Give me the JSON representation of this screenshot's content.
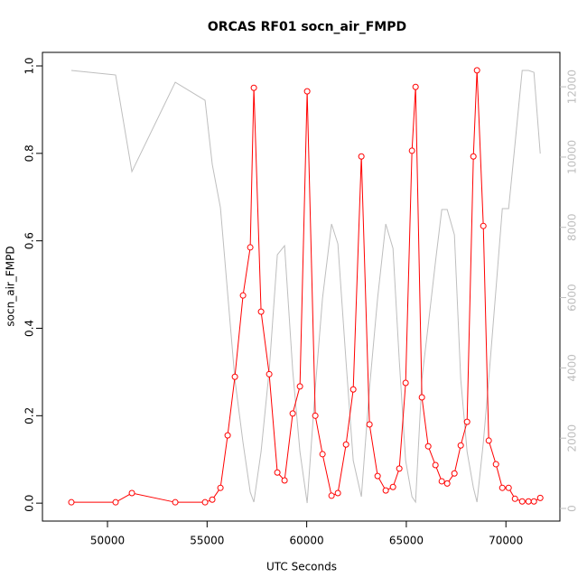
{
  "chart_data": {
    "type": "line",
    "title": "ORCAS RF01 socn_air_FMPD",
    "xlabel": "UTC Seconds",
    "ylabel": "socn_air_FMPD",
    "x": [
      48186,
      50408,
      51225,
      53402,
      54898,
      55260,
      55670,
      56032,
      56395,
      56803,
      57166,
      57347,
      57710,
      58118,
      58526,
      58889,
      59297,
      59660,
      60023,
      60431,
      60794,
      61247,
      61565,
      61973,
      62336,
      62744,
      63152,
      63560,
      63968,
      64331,
      64649,
      64966,
      65284,
      65465,
      65782,
      66100,
      66463,
      66780,
      67052,
      67415,
      67732,
      68050,
      68367,
      68548,
      68866,
      69138,
      69501,
      69819,
      70136,
      70454,
      70816,
      71134,
      71406,
      71723
    ],
    "series": [
      {
        "color": "#ff0000",
        "axis": "y",
        "markers": true,
        "values": [
          0.002,
          0.002,
          0.023,
          0.002,
          0.002,
          0.008,
          0.035,
          0.155,
          0.289,
          0.475,
          0.585,
          0.95,
          0.438,
          0.295,
          0.07,
          0.052,
          0.205,
          0.267,
          0.942,
          0.2,
          0.112,
          0.017,
          0.023,
          0.134,
          0.26,
          0.793,
          0.18,
          0.062,
          0.029,
          0.037,
          0.079,
          0.275,
          0.806,
          0.952,
          0.242,
          0.13,
          0.087,
          0.05,
          0.045,
          0.068,
          0.132,
          0.186,
          0.793,
          0.99,
          0.634,
          0.143,
          0.089,
          0.035,
          0.035,
          0.01,
          0.004,
          0.004,
          0.004,
          0.012
        ]
      },
      {
        "color": "#bebebe",
        "axis": "y2",
        "markers": false,
        "values": [
          12465,
          12336,
          9586,
          12130,
          11616,
          9792,
          8558,
          6117,
          3675,
          1876,
          463,
          180,
          1619,
          3932,
          7221,
          7478,
          3932,
          1619,
          154,
          3418,
          5988,
          8096,
          7530,
          4189,
          1362,
          334,
          3418,
          5988,
          8096,
          7402,
          4189,
          1362,
          334,
          180,
          3675,
          5217,
          7016,
          8507,
          8507,
          7787,
          3675,
          1619,
          591,
          180,
          1876,
          3675,
          6245,
          8532,
          8532,
          10357,
          12465,
          12465,
          12413,
          10100
        ]
      }
    ],
    "xlim": [
      46735,
      72710
    ],
    "xticks": [
      50000,
      55000,
      60000,
      65000,
      70000
    ],
    "ylim": [
      -0.041,
      1.031
    ],
    "yticks": [
      {
        "value": 0,
        "label": "0.0"
      },
      {
        "value": 0.2,
        "label": "0.2"
      },
      {
        "value": 0.4,
        "label": "0.4"
      },
      {
        "value": 0.6,
        "label": "0.6"
      },
      {
        "value": 0.8,
        "label": "0.8"
      },
      {
        "value": 1,
        "label": "1.0"
      }
    ],
    "y2lim": [
      -360,
      12980
    ],
    "y2ticks": [
      0,
      2000,
      4000,
      6000,
      8000,
      10000,
      12000
    ],
    "y2color": "#bebebe"
  }
}
